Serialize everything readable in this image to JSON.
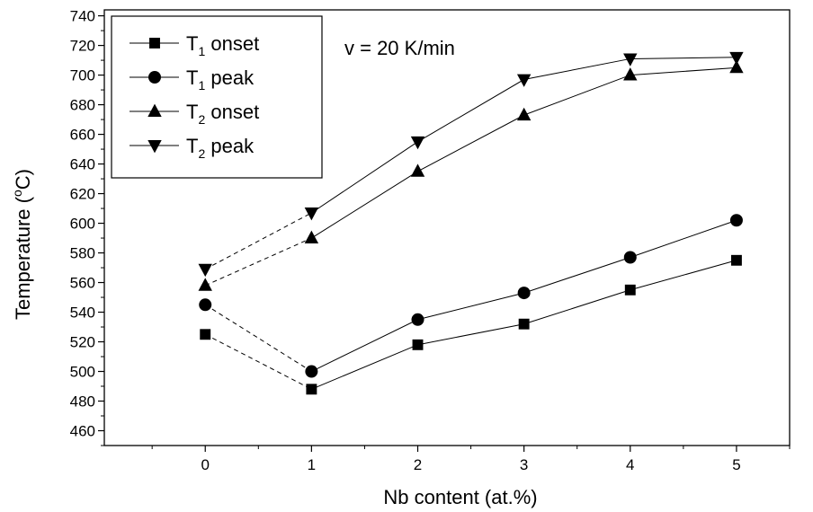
{
  "chart_data": {
    "type": "line",
    "xlabel": "Nb content (at.%)",
    "ylabel": {
      "prefix": "Temperature (",
      "sup": "o",
      "suffix": "C)"
    },
    "annotation": "v = 20 K/min",
    "x": [
      0,
      1,
      2,
      3,
      4,
      5
    ],
    "xlim": [
      -0.95,
      5.5
    ],
    "ylim": [
      450,
      744
    ],
    "x_ticks": [
      "0",
      "1",
      "2",
      "3",
      "4",
      "5"
    ],
    "y_ticks": [
      460,
      480,
      500,
      520,
      540,
      560,
      580,
      600,
      620,
      640,
      660,
      680,
      700,
      720,
      740
    ],
    "grid": false,
    "legend_position": "top-left",
    "dashed_segment": "between x=0 and x=1",
    "series": [
      {
        "label": {
          "main": "T",
          "sub": "1",
          "rest": " onset"
        },
        "marker": "square",
        "values": [
          525,
          488,
          518,
          532,
          555,
          575
        ]
      },
      {
        "label": {
          "main": "T",
          "sub": "1",
          "rest": " peak"
        },
        "marker": "circle",
        "values": [
          545,
          500,
          535,
          553,
          577,
          602
        ]
      },
      {
        "label": {
          "main": "T",
          "sub": "2",
          "rest": " onset"
        },
        "marker": "triangle-up",
        "values": [
          558,
          590,
          635,
          673,
          700,
          705
        ]
      },
      {
        "label": {
          "main": "T",
          "sub": "2",
          "rest": " peak"
        },
        "marker": "triangle-down",
        "values": [
          569,
          607,
          655,
          697,
          711,
          712
        ]
      }
    ]
  }
}
